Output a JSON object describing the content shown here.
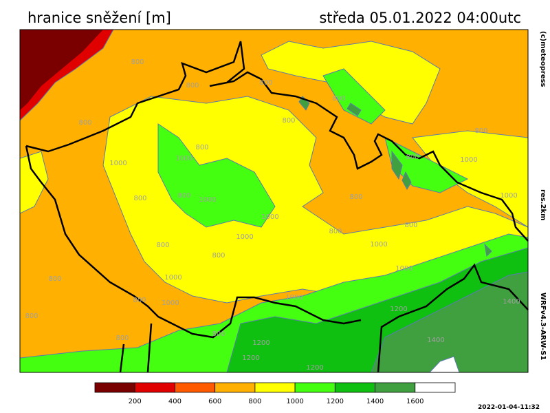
{
  "header": {
    "title": "hranice sněžení [m]",
    "datetime": "středa 05.01.2022 04:00utc"
  },
  "side_labels": [
    "(c)meteopress",
    "res.2km",
    "WRFv4.3-ARW-S1"
  ],
  "map": {
    "contour_labels": [
      "800",
      "800",
      "800",
      "800",
      "800",
      "800",
      "800",
      "800",
      "1000",
      "1000",
      "1000",
      "800",
      "800",
      "1000",
      "800",
      "1000",
      "1000",
      "1000",
      "800",
      "800",
      "800",
      "800",
      "1000",
      "800",
      "1000",
      "1000",
      "800",
      "1000",
      "1000",
      "800",
      "800",
      "800",
      "1200",
      "1200",
      "1200",
      "1400",
      "1400",
      "1200",
      "800"
    ]
  },
  "legend": {
    "colors": [
      "#7a0000",
      "#e00000",
      "#ff5a00",
      "#ffb000",
      "#ffff00",
      "#44ff10",
      "#10c010",
      "#40a040",
      "#ffffff"
    ],
    "ticks": [
      200,
      400,
      600,
      800,
      1000,
      1200,
      1400,
      1600
    ]
  },
  "footer": {
    "timestamp": "2022-01-04-11:32"
  }
}
